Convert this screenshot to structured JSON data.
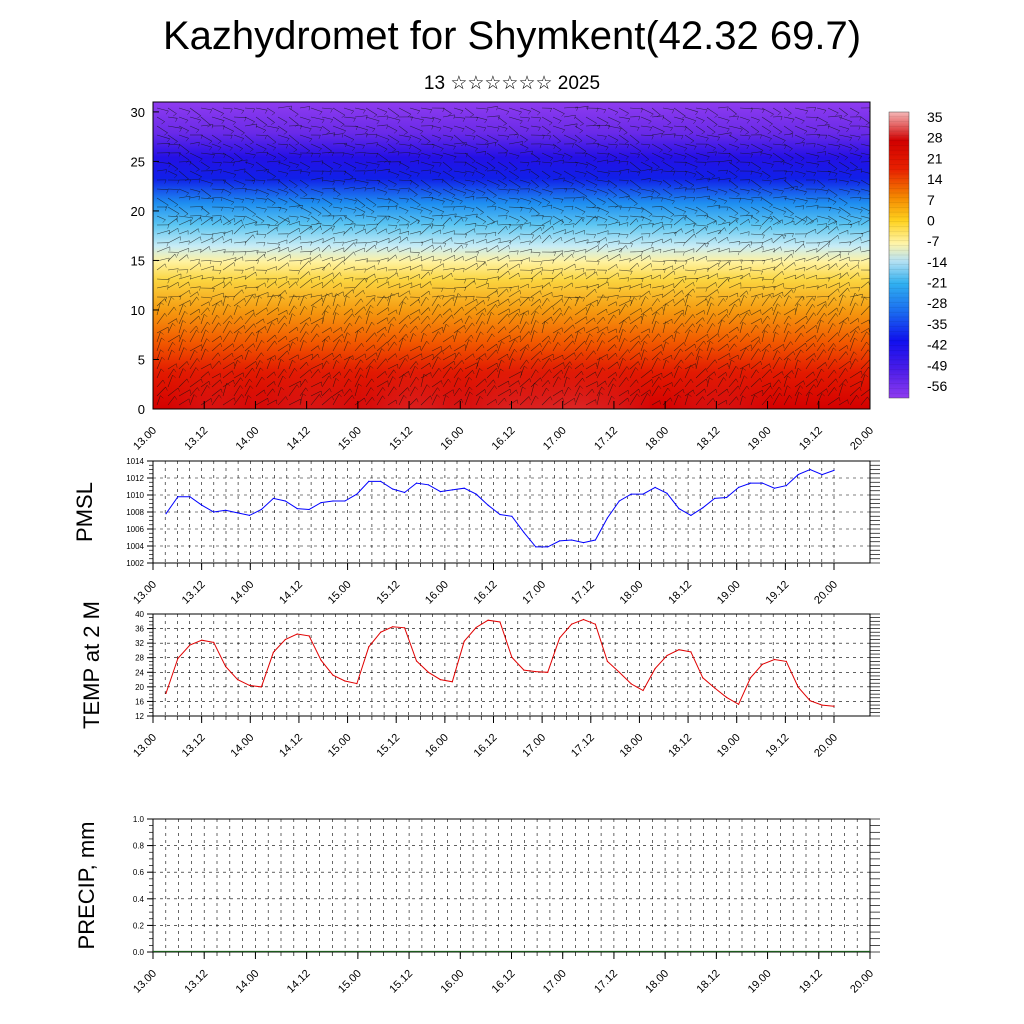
{
  "page": {
    "title": "Kazhydromet for Shymkent(42.32 69.7)",
    "subtitle": "13 ☆☆☆☆☆☆ 2025"
  },
  "chart_data": [
    {
      "type": "heatmap",
      "name_hint": "vertical-temperature-wind-section",
      "title": "",
      "xlabel": "",
      "ylabel": "",
      "x_tick_labels": [
        "13.00",
        "13.12",
        "14.00",
        "14.12",
        "15.00",
        "15.12",
        "16.00",
        "16.12",
        "17.00",
        "17.12",
        "18.00",
        "18.12",
        "19.00",
        "19.12",
        "20.00"
      ],
      "y_ticks": [
        0,
        5,
        10,
        15,
        20,
        25,
        30
      ],
      "ylim": [
        0,
        31
      ],
      "colorbar_ticks": [
        35,
        28,
        21,
        14,
        7,
        0,
        -7,
        -14,
        -21,
        -28,
        -35,
        -42,
        -49,
        -56
      ],
      "colorbar_range": [
        -60,
        38
      ],
      "palette": {
        "warm_high": "#f4b8b8",
        "red": "#e00000",
        "orange": "#f08c00",
        "yellow": "#ffe640",
        "light_blue": "#b0e0f0",
        "cyan": "#30b0f0",
        "blue": "#1a20f0",
        "violet": "#8a2be2"
      },
      "wind_overlay": "black wind barbs (streamlines)"
    },
    {
      "type": "line",
      "ylabel": "PMSL",
      "ylim": [
        1002,
        1014
      ],
      "y_ticks": [
        1002,
        1004,
        1006,
        1008,
        1010,
        1012,
        1014
      ],
      "x_tick_labels": [
        "13.00",
        "13.12",
        "14.00",
        "14.12",
        "15.00",
        "15.12",
        "16.00",
        "16.12",
        "17.00",
        "17.12",
        "18.00",
        "18.12",
        "19.00",
        "19.12",
        "20.00"
      ],
      "line_color": "#0000ff",
      "grid": true,
      "values": [
        1007.8,
        1009.8,
        1009.8,
        1008.8,
        1008.0,
        1008.2,
        1007.9,
        1007.6,
        1008.3,
        1009.6,
        1009.3,
        1008.4,
        1008.3,
        1009.1,
        1009.3,
        1009.3,
        1010.1,
        1011.6,
        1011.6,
        1010.7,
        1010.3,
        1011.4,
        1011.2,
        1010.4,
        1010.6,
        1010.8,
        1010.1,
        1008.8,
        1007.7,
        1007.5,
        1005.6,
        1003.9,
        1003.9,
        1004.6,
        1004.7,
        1004.4,
        1004.7,
        1007.3,
        1009.3,
        1010.1,
        1010.1,
        1010.9,
        1010.2,
        1008.4,
        1007.6,
        1008.5,
        1009.6,
        1009.7,
        1010.9,
        1011.4,
        1011.4,
        1010.8,
        1011.1,
        1012.4,
        1013.0,
        1012.4,
        1012.9
      ]
    },
    {
      "type": "line",
      "ylabel": "TEMP at 2 M",
      "ylim": [
        12,
        40
      ],
      "y_ticks": [
        12,
        16,
        20,
        24,
        28,
        32,
        36,
        40
      ],
      "x_tick_labels": [
        "13.00",
        "13.12",
        "14.00",
        "14.12",
        "15.00",
        "15.12",
        "16.00",
        "16.12",
        "17.00",
        "17.12",
        "18.00",
        "18.12",
        "19.00",
        "19.12",
        "20.00"
      ],
      "line_color": "#e00000",
      "grid": true,
      "values": [
        18.2,
        27.8,
        31.5,
        32.8,
        32.2,
        25.6,
        22.0,
        20.4,
        20.0,
        29.5,
        33.0,
        34.5,
        34.0,
        27.3,
        23.2,
        21.6,
        20.9,
        31.0,
        35.0,
        36.5,
        36.2,
        27.1,
        24.0,
        22.0,
        21.4,
        32.5,
        36.3,
        38.3,
        37.8,
        28.1,
        24.6,
        24.2,
        24.0,
        33.4,
        37.2,
        38.5,
        37.2,
        27.0,
        24.0,
        20.8,
        19.0,
        25.0,
        28.6,
        30.2,
        29.6,
        22.5,
        19.7,
        17.1,
        15.2,
        22.5,
        26.2,
        27.5,
        27.0,
        19.9,
        16.2,
        15.0,
        14.7
      ]
    },
    {
      "type": "bar",
      "ylabel": "PRECIP, mm",
      "ylim": [
        0,
        1
      ],
      "y_ticks": [
        "0.0",
        "0.2",
        "0.4",
        "0.6",
        "0.8",
        "1.0"
      ],
      "x_tick_labels": [
        "13.00",
        "13.12",
        "14.00",
        "14.12",
        "15.00",
        "15.12",
        "16.00",
        "16.12",
        "17.00",
        "17.12",
        "18.00",
        "18.12",
        "19.00",
        "19.12",
        "20.00"
      ],
      "grid": true,
      "values": [
        0,
        0,
        0,
        0,
        0,
        0,
        0,
        0,
        0,
        0,
        0,
        0,
        0,
        0,
        0,
        0,
        0,
        0,
        0,
        0,
        0,
        0,
        0,
        0,
        0,
        0,
        0,
        0,
        0,
        0,
        0,
        0,
        0,
        0,
        0,
        0,
        0,
        0,
        0,
        0,
        0,
        0,
        0,
        0,
        0,
        0,
        0,
        0,
        0,
        0,
        0,
        0,
        0,
        0,
        0,
        0,
        0
      ]
    }
  ]
}
